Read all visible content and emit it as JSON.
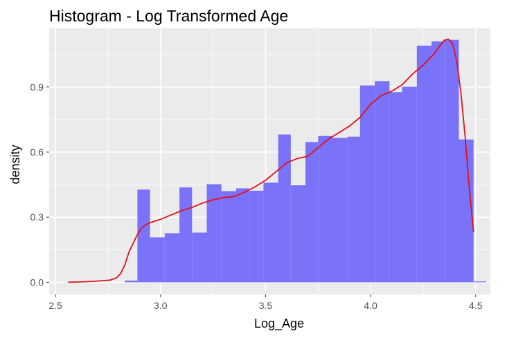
{
  "chart_data": {
    "type": "bar",
    "title": "Histogram - Log Transformed Age",
    "xlabel": "Log_Age",
    "ylabel": "density",
    "xlim": [
      2.47,
      4.57
    ],
    "ylim": [
      -0.056,
      1.17
    ],
    "x_ticks": [
      2.5,
      3.0,
      3.5,
      4.0,
      4.5
    ],
    "x_tick_labels": [
      "2.5",
      "3.0",
      "3.5",
      "4.0",
      "4.5"
    ],
    "y_ticks": [
      0.0,
      0.3,
      0.6,
      0.9
    ],
    "y_tick_labels": [
      "0.0",
      "0.3",
      "0.6",
      "0.9"
    ],
    "grid": true,
    "legend": "none",
    "colors": {
      "panel": "#ebebeb",
      "grid": "#ffffff",
      "bar": "#7a72f8",
      "density_line": "#e0101a"
    },
    "histogram": {
      "bins": [
        {
          "x0": 2.83,
          "x1": 2.89,
          "density": 0.008
        },
        {
          "x0": 2.89,
          "x1": 2.95,
          "density": 0.427
        },
        {
          "x0": 2.95,
          "x1": 3.02,
          "density": 0.207
        },
        {
          "x0": 3.02,
          "x1": 3.09,
          "density": 0.226
        },
        {
          "x0": 3.09,
          "x1": 3.15,
          "density": 0.437
        },
        {
          "x0": 3.15,
          "x1": 3.22,
          "density": 0.229
        },
        {
          "x0": 3.22,
          "x1": 3.29,
          "density": 0.452
        },
        {
          "x0": 3.29,
          "x1": 3.36,
          "density": 0.42
        },
        {
          "x0": 3.36,
          "x1": 3.42,
          "density": 0.433
        },
        {
          "x0": 3.42,
          "x1": 3.49,
          "density": 0.422
        },
        {
          "x0": 3.49,
          "x1": 3.56,
          "density": 0.459
        },
        {
          "x0": 3.56,
          "x1": 3.62,
          "density": 0.681
        },
        {
          "x0": 3.62,
          "x1": 3.69,
          "density": 0.447
        },
        {
          "x0": 3.69,
          "x1": 3.75,
          "density": 0.646
        },
        {
          "x0": 3.75,
          "x1": 3.82,
          "density": 0.674
        },
        {
          "x0": 3.82,
          "x1": 3.89,
          "density": 0.665
        },
        {
          "x0": 3.89,
          "x1": 3.95,
          "density": 0.671
        },
        {
          "x0": 3.95,
          "x1": 4.02,
          "density": 0.907
        },
        {
          "x0": 4.02,
          "x1": 4.09,
          "density": 0.927
        },
        {
          "x0": 4.09,
          "x1": 4.15,
          "density": 0.876
        },
        {
          "x0": 4.15,
          "x1": 4.22,
          "density": 0.901
        },
        {
          "x0": 4.22,
          "x1": 4.29,
          "density": 1.09
        },
        {
          "x0": 4.29,
          "x1": 4.35,
          "density": 1.11
        },
        {
          "x0": 4.35,
          "x1": 4.42,
          "density": 1.117
        },
        {
          "x0": 4.42,
          "x1": 4.49,
          "density": 0.658
        },
        {
          "x0": 4.49,
          "x1": 4.55,
          "density": 0.004
        }
      ]
    },
    "density_curve": {
      "x": [
        2.56,
        2.65,
        2.72,
        2.76,
        2.79,
        2.81,
        2.83,
        2.85,
        2.87,
        2.89,
        2.91,
        2.93,
        2.95,
        3.0,
        3.05,
        3.1,
        3.15,
        3.2,
        3.25,
        3.3,
        3.35,
        3.4,
        3.45,
        3.5,
        3.55,
        3.6,
        3.65,
        3.7,
        3.75,
        3.8,
        3.85,
        3.9,
        3.95,
        4.0,
        4.05,
        4.1,
        4.15,
        4.2,
        4.25,
        4.3,
        4.33,
        4.35,
        4.37,
        4.39,
        4.41,
        4.43,
        4.45,
        4.47,
        4.49
      ],
      "y": [
        0.0,
        0.003,
        0.007,
        0.01,
        0.02,
        0.04,
        0.08,
        0.14,
        0.18,
        0.22,
        0.25,
        0.265,
        0.275,
        0.29,
        0.31,
        0.33,
        0.345,
        0.365,
        0.38,
        0.39,
        0.395,
        0.415,
        0.44,
        0.47,
        0.51,
        0.55,
        0.57,
        0.58,
        0.62,
        0.66,
        0.69,
        0.72,
        0.76,
        0.82,
        0.86,
        0.88,
        0.91,
        0.96,
        1.0,
        1.05,
        1.09,
        1.115,
        1.12,
        1.1,
        1.02,
        0.87,
        0.67,
        0.43,
        0.23
      ]
    }
  }
}
